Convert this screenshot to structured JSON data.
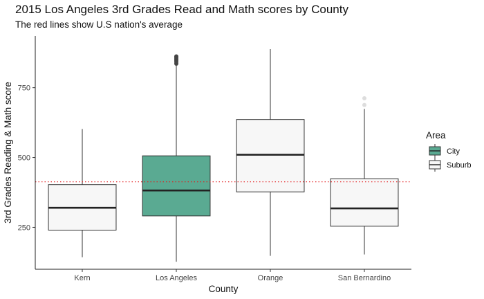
{
  "chart_data": {
    "type": "box",
    "title": "2015 Los Angeles 3rd Grades Read and Math scores by County",
    "subtitle": "The red lines show U.S nation's average",
    "xlabel": "County",
    "ylabel": "3rd Grades Reading & Math score",
    "ylim": [
      100,
      935
    ],
    "yticks": [
      250,
      500,
      750
    ],
    "grid": false,
    "reference_line": {
      "y": 413,
      "color": "#e41a1c",
      "style": "dotted"
    },
    "legend": {
      "title": "Area",
      "position": "right",
      "entries": [
        {
          "label": "City",
          "color": "#5aaa92"
        },
        {
          "label": "Suburb",
          "color": "#f7f7f7"
        }
      ]
    },
    "boxes": [
      {
        "category": "Kern",
        "area": "Suburb",
        "min": 143,
        "q1": 240,
        "median": 320,
        "q3": 403,
        "max": 602,
        "outliers": []
      },
      {
        "category": "Los Angeles",
        "area": "City",
        "min": 127,
        "q1": 291,
        "median": 382,
        "q3": 506,
        "max": 830,
        "outliers": [
          836,
          842,
          848,
          853,
          858,
          862
        ]
      },
      {
        "category": "Orange",
        "area": "Suburb",
        "min": 148,
        "q1": 377,
        "median": 510,
        "q3": 636,
        "max": 888,
        "outliers": []
      },
      {
        "category": "San Bernardino",
        "area": "Suburb",
        "min": 153,
        "q1": 254,
        "median": 318,
        "q3": 424,
        "max": 674,
        "outliers": [
          688,
          712
        ]
      }
    ]
  }
}
